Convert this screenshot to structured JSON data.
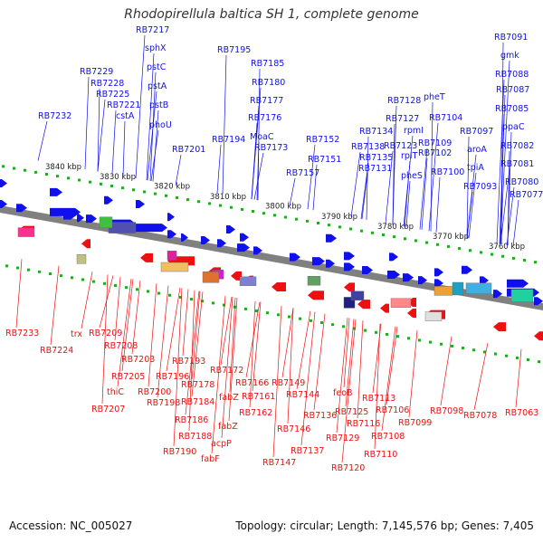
{
  "title": "Rhodopirellula baltica SH 1, complete genome",
  "footer": {
    "accession": "Accession: NC_005027",
    "topology": "Topology: circular; Length: 7,145,576 bp; Genes: 7,405"
  },
  "colors": {
    "forward": "#1010ee",
    "reverse": "#ee1010",
    "backbone": "#808080",
    "tick": "#22aa22"
  },
  "scale_labels": [
    "3840 kbp",
    "3830 kbp",
    "3820 kbp",
    "3810 kbp",
    "3800 kbp",
    "3790 kbp",
    "3780 kbp",
    "3770 kbp",
    "3760 kbp"
  ],
  "top_labels": [
    "RB7217",
    "sphX",
    "pstC",
    "RB7229",
    "RB7228",
    "pstA",
    "RB7225",
    "pstB",
    "RB7221",
    "cstA",
    "RB7232",
    "phoU",
    "RB7201",
    "RB7195",
    "RB7185",
    "RB7180",
    "RB7177",
    "RB7176",
    "RB7194",
    "MoaC",
    "RB7173",
    "RB7152",
    "RB7157",
    "RB7151",
    "RB7134",
    "RB7138",
    "RB7135",
    "RB7131",
    "RB7128",
    "RB7127",
    "rpmI",
    "RB7123",
    "rplT",
    "pheS",
    "pheT",
    "RB7104",
    "RB7109",
    "RB7102",
    "RB7100",
    "RB7091",
    "gmk",
    "RB7088",
    "RB7087",
    "RB7085",
    "RB7097",
    "aroA",
    "tpiA",
    "RB7093",
    "ppaC",
    "RB7082",
    "RB7081",
    "RB7080",
    "RB7077"
  ],
  "bottom_labels": [
    "RB7233",
    "RB7224",
    "trx",
    "RB7209",
    "RB7208",
    "RB7203",
    "RB7205",
    "thiC",
    "RB7207",
    "RB7200",
    "RB7198",
    "RB7196",
    "RB7193",
    "RB7178",
    "RB7184",
    "RB7186",
    "RB7188",
    "RB7190",
    "RB7172",
    "RB7166",
    "fabZ",
    "fabZ",
    "acpP",
    "fabF",
    "RB7162",
    "RB7161",
    "RB7149",
    "RB7144",
    "RB7146",
    "RB7147",
    "RB7136",
    "RB7137",
    "feoB",
    "RB7125",
    "RB7129",
    "RB7120",
    "RB7116",
    "RB7113",
    "RB7106",
    "RB7108",
    "RB7110",
    "RB7099",
    "RB7098",
    "RB7078",
    "RB7063"
  ]
}
